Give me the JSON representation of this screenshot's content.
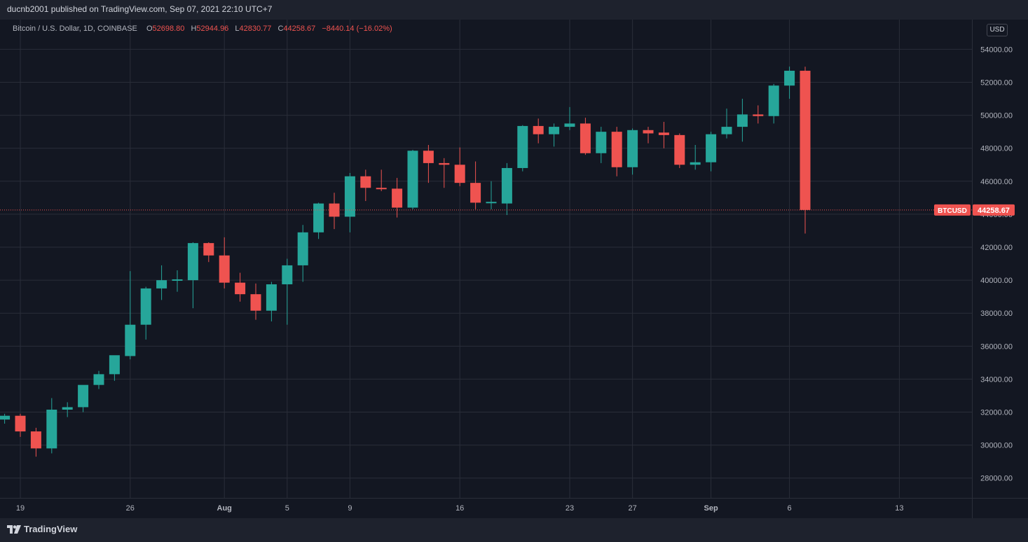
{
  "header": {
    "publisher": "ducnb2001 published on TradingView.com, Sep 07, 2021 22:10 UTC+7"
  },
  "legend": {
    "symbol": "Bitcoin / U.S. Dollar, 1D, COINBASE",
    "o_label": "O",
    "o_value": "52698.80",
    "h_label": "H",
    "h_value": "52944.96",
    "l_label": "L",
    "l_value": "42830.77",
    "c_label": "C",
    "c_value": "44258.67",
    "change": "−8440.14 (−16.02%)"
  },
  "currency_badge": "USD",
  "last_price": {
    "label": "BTCUSD",
    "value": "44258.67",
    "price": 44258.67
  },
  "footer": {
    "brand": "TradingView"
  },
  "colors": {
    "up": "#26a69a",
    "down": "#ef5350",
    "background": "#131722",
    "grid": "#2a2e39",
    "text": "#b2b5be"
  },
  "chart_data": {
    "type": "candlestick",
    "ylim": [
      26800,
      55800
    ],
    "y_ticks": [
      28000,
      30000,
      32000,
      34000,
      36000,
      38000,
      40000,
      42000,
      44000,
      46000,
      48000,
      50000,
      52000,
      54000
    ],
    "y_tick_labels": [
      "28000.00",
      "30000.00",
      "32000.00",
      "34000.00",
      "36000.00",
      "38000.00",
      "40000.00",
      "42000.00",
      "44000.00",
      "46000.00",
      "48000.00",
      "50000.00",
      "52000.00",
      "54000.00"
    ],
    "x_ticks": [
      {
        "date": "2021-07-19",
        "label": "19"
      },
      {
        "date": "2021-07-26",
        "label": "26"
      },
      {
        "date": "2021-08-01",
        "label": "Aug"
      },
      {
        "date": "2021-08-05",
        "label": "5"
      },
      {
        "date": "2021-08-09",
        "label": "9"
      },
      {
        "date": "2021-08-16",
        "label": "16"
      },
      {
        "date": "2021-08-23",
        "label": "23"
      },
      {
        "date": "2021-08-27",
        "label": "27"
      },
      {
        "date": "2021-09-01",
        "label": "Sep"
      },
      {
        "date": "2021-09-06",
        "label": "6"
      },
      {
        "date": "2021-09-13",
        "label": "13"
      }
    ],
    "candles": [
      {
        "date": "2021-07-18",
        "o": 31550,
        "h": 31900,
        "l": 31300,
        "c": 31780
      },
      {
        "date": "2021-07-19",
        "o": 31780,
        "h": 31900,
        "l": 30500,
        "c": 30830
      },
      {
        "date": "2021-07-20",
        "o": 30830,
        "h": 31050,
        "l": 29300,
        "c": 29800
      },
      {
        "date": "2021-07-21",
        "o": 29800,
        "h": 32850,
        "l": 29500,
        "c": 32150
      },
      {
        "date": "2021-07-22",
        "o": 32150,
        "h": 32600,
        "l": 31700,
        "c": 32300
      },
      {
        "date": "2021-07-23",
        "o": 32300,
        "h": 33600,
        "l": 32000,
        "c": 33650
      },
      {
        "date": "2021-07-24",
        "o": 33650,
        "h": 34500,
        "l": 33400,
        "c": 34300
      },
      {
        "date": "2021-07-25",
        "o": 34300,
        "h": 35400,
        "l": 33900,
        "c": 35450
      },
      {
        "date": "2021-07-26",
        "o": 35400,
        "h": 40550,
        "l": 35200,
        "c": 37300
      },
      {
        "date": "2021-07-27",
        "o": 37300,
        "h": 39600,
        "l": 36400,
        "c": 39500
      },
      {
        "date": "2021-07-28",
        "o": 39500,
        "h": 40900,
        "l": 38800,
        "c": 40000
      },
      {
        "date": "2021-07-29",
        "o": 40000,
        "h": 40600,
        "l": 39300,
        "c": 40050
      },
      {
        "date": "2021-07-30",
        "o": 40000,
        "h": 42300,
        "l": 38300,
        "c": 42250
      },
      {
        "date": "2021-07-31",
        "o": 42250,
        "h": 42300,
        "l": 41100,
        "c": 41500
      },
      {
        "date": "2021-08-01",
        "o": 41500,
        "h": 42600,
        "l": 39500,
        "c": 39850
      },
      {
        "date": "2021-08-02",
        "o": 39850,
        "h": 40450,
        "l": 38700,
        "c": 39150
      },
      {
        "date": "2021-08-03",
        "o": 39150,
        "h": 39800,
        "l": 37600,
        "c": 38150
      },
      {
        "date": "2021-08-04",
        "o": 38150,
        "h": 39900,
        "l": 37500,
        "c": 39750
      },
      {
        "date": "2021-08-05",
        "o": 39750,
        "h": 41300,
        "l": 37300,
        "c": 40900
      },
      {
        "date": "2021-08-06",
        "o": 40900,
        "h": 43350,
        "l": 39900,
        "c": 42900
      },
      {
        "date": "2021-08-07",
        "o": 42900,
        "h": 44700,
        "l": 42500,
        "c": 44650
      },
      {
        "date": "2021-08-08",
        "o": 44650,
        "h": 45300,
        "l": 43100,
        "c": 43850
      },
      {
        "date": "2021-08-09",
        "o": 43850,
        "h": 46500,
        "l": 42900,
        "c": 46300
      },
      {
        "date": "2021-08-10",
        "o": 46300,
        "h": 46700,
        "l": 44800,
        "c": 45600
      },
      {
        "date": "2021-08-11",
        "o": 45600,
        "h": 46700,
        "l": 45400,
        "c": 45550
      },
      {
        "date": "2021-08-12",
        "o": 45550,
        "h": 46200,
        "l": 43800,
        "c": 44400
      },
      {
        "date": "2021-08-13",
        "o": 44400,
        "h": 47900,
        "l": 44300,
        "c": 47850
      },
      {
        "date": "2021-08-14",
        "o": 47850,
        "h": 48200,
        "l": 45900,
        "c": 47100
      },
      {
        "date": "2021-08-15",
        "o": 47100,
        "h": 47400,
        "l": 45600,
        "c": 47000
      },
      {
        "date": "2021-08-16",
        "o": 47000,
        "h": 48050,
        "l": 45700,
        "c": 45900
      },
      {
        "date": "2021-08-17",
        "o": 45900,
        "h": 47200,
        "l": 44300,
        "c": 44700
      },
      {
        "date": "2021-08-18",
        "o": 44700,
        "h": 46000,
        "l": 44300,
        "c": 44750
      },
      {
        "date": "2021-08-19",
        "o": 44650,
        "h": 47100,
        "l": 43950,
        "c": 46800
      },
      {
        "date": "2021-08-20",
        "o": 46800,
        "h": 49400,
        "l": 46600,
        "c": 49350
      },
      {
        "date": "2021-08-21",
        "o": 49350,
        "h": 49800,
        "l": 48300,
        "c": 48850
      },
      {
        "date": "2021-08-22",
        "o": 48850,
        "h": 49500,
        "l": 48100,
        "c": 49300
      },
      {
        "date": "2021-08-23",
        "o": 49300,
        "h": 50500,
        "l": 49100,
        "c": 49500
      },
      {
        "date": "2021-08-24",
        "o": 49500,
        "h": 49850,
        "l": 47600,
        "c": 47700
      },
      {
        "date": "2021-08-25",
        "o": 47700,
        "h": 49300,
        "l": 47100,
        "c": 49000
      },
      {
        "date": "2021-08-26",
        "o": 49000,
        "h": 49300,
        "l": 46300,
        "c": 46850
      },
      {
        "date": "2021-08-27",
        "o": 46850,
        "h": 49200,
        "l": 46400,
        "c": 49100
      },
      {
        "date": "2021-08-28",
        "o": 49100,
        "h": 49300,
        "l": 48300,
        "c": 48900
      },
      {
        "date": "2021-08-29",
        "o": 48950,
        "h": 49600,
        "l": 48000,
        "c": 48800
      },
      {
        "date": "2021-08-30",
        "o": 48800,
        "h": 48900,
        "l": 46800,
        "c": 47000
      },
      {
        "date": "2021-08-31",
        "o": 47000,
        "h": 48200,
        "l": 46700,
        "c": 47150
      },
      {
        "date": "2021-09-01",
        "o": 47150,
        "h": 49000,
        "l": 46600,
        "c": 48850
      },
      {
        "date": "2021-09-02",
        "o": 48850,
        "h": 50400,
        "l": 48600,
        "c": 49300
      },
      {
        "date": "2021-09-03",
        "o": 49300,
        "h": 51000,
        "l": 48400,
        "c": 50050
      },
      {
        "date": "2021-09-04",
        "o": 50050,
        "h": 50600,
        "l": 49500,
        "c": 49950
      },
      {
        "date": "2021-09-05",
        "o": 49950,
        "h": 51900,
        "l": 49500,
        "c": 51800
      },
      {
        "date": "2021-09-06",
        "o": 51800,
        "h": 52950,
        "l": 51000,
        "c": 52700
      },
      {
        "date": "2021-09-07",
        "o": 52698.8,
        "h": 52944.96,
        "l": 42830.77,
        "c": 44258.67
      }
    ]
  }
}
